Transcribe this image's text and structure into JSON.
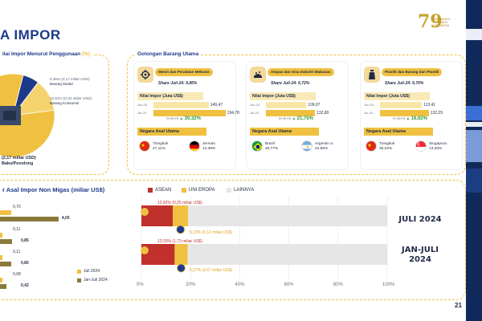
{
  "header": {
    "title": "A IMPOR",
    "logo_number": "79",
    "logo_text": "DIRGAHAYU REPUBLIK INDONESIA"
  },
  "left_panel": {
    "title_main": "ilai Impor Menurut Penggunaan",
    "title_suffix": "(%)",
    "notes": [
      {
        "text": "6,35% (0,17 miliar USD)",
        "sub": "Barang Modal"
      },
      {
        "text": "12,61% (0,34 miliar USD)",
        "sub": "Barang Konsumsi"
      }
    ],
    "big_text": "(2,17 miliar USD)",
    "big_sub": "Baku/Penolong"
  },
  "mid_panel": {
    "title": "Golongan Barang Utama",
    "cards": [
      {
        "tag": "Mesin dan Peralatan Mekanis",
        "share": "Share Juli-24: 9,86%",
        "nilai_label": "Nilai Impor (Juta US$)",
        "rows": [
          {
            "year": "Jun-24",
            "value": 149.47,
            "label": "149,47"
          },
          {
            "year": "Jul-24",
            "value": 194.78,
            "label": "194,78"
          }
        ],
        "mtm_label": "m-to-m",
        "mtm_pct": "30,32%",
        "asal_label": "Negara Asal Utama",
        "countries": [
          {
            "name": "Tiongkok",
            "pct": "47,11%",
            "flag": "cn"
          },
          {
            "name": "Jerman",
            "pct": "13,38%",
            "flag": "de"
          }
        ]
      },
      {
        "tag": "Ampas dan Sisa Industri Makanan",
        "share": "Share Juli-24: 6,72%",
        "nilai_label": "Nilai Impor (Juta US$)",
        "rows": [
          {
            "year": "Jun-24",
            "value": 109.07,
            "label": "109,07"
          },
          {
            "year": "Jul-24",
            "value": 132.8,
            "label": "132,80"
          }
        ],
        "mtm_label": "m-to-m",
        "mtm_pct": "21,75%",
        "asal_label": "Negara Asal Utama",
        "countries": [
          {
            "name": "Brazil",
            "pct": "49,77%",
            "flag": "br"
          },
          {
            "name": "Argentin a",
            "pct": "22,95%",
            "flag": "ar"
          }
        ]
      },
      {
        "tag": "Plastik dan Barang dari Plastik",
        "share": "Share Juli-24: 6,70%",
        "nilai_label": "Nilai Impor (Juta US$)",
        "rows": [
          {
            "year": "Jun-24",
            "value": 113.41,
            "label": "113,41"
          },
          {
            "year": "Jul-24",
            "value": 132.25,
            "label": "132,25"
          }
        ],
        "mtm_label": "m-to-m",
        "mtm_pct": "16,62%",
        "asal_label": "Negara Asal Utama",
        "countries": [
          {
            "name": "Tiongkok",
            "pct": "35,02%",
            "flag": "cn"
          },
          {
            "name": "Singapura",
            "pct": "13,35%",
            "flag": "sg"
          }
        ]
      }
    ]
  },
  "bottom_left": {
    "title": "r Asal Impor Non Migas (miliar US$)",
    "legend": [
      {
        "label": "Juli 2024",
        "color": "#f0c040"
      },
      {
        "label": "Jan-Juli 2024",
        "color": "#8a7a3a"
      }
    ],
    "pairs": [
      {
        "a": 0.7,
        "a_label": "0,70",
        "b": 4.05,
        "b_label": "4,05"
      },
      {
        "a": 0.11,
        "a_label": "0,11",
        "b": 0.85,
        "b_label": "0,85"
      },
      {
        "a": 0.11,
        "a_label": "0,11",
        "b": 0.8,
        "b_label": "0,80"
      },
      {
        "a": 0.08,
        "a_label": "0,08",
        "b": 0.42,
        "b_label": "0,42"
      }
    ]
  },
  "chart_data": [
    {
      "type": "pie",
      "slices": [
        {
          "name": "Barang Modal",
          "value": 6.35,
          "color": "#1d3a8a"
        },
        {
          "name": "Barang Konsumsi",
          "value": 12.61,
          "color": "#f0c040"
        },
        {
          "name": "Baku/Penolong",
          "value": 81.04,
          "color": "#f0c040"
        }
      ]
    },
    {
      "type": "bar",
      "orientation": "horizontal",
      "stacked": true,
      "categories": [
        "JULI 2024",
        "JAN-JULI 2024"
      ],
      "series": [
        {
          "name": "ASEAN",
          "color": "#c0312b",
          "values": [
            12.82,
            13.53
          ],
          "labels": [
            "12,82% (0,25 miliar US$)",
            "13,53% (1,73 miliar US$)"
          ]
        },
        {
          "name": "UNI EROPA",
          "color": "#f0c040",
          "values": [
            6.19,
            5.27
          ],
          "labels": [
            "6,19% (0,12 miliar US$)",
            "5,27% (0,67 miliar US$)"
          ]
        },
        {
          "name": "LAINNYA",
          "color": "#e6e6e6",
          "values": [
            80.99,
            81.2
          ]
        }
      ],
      "xlim": [
        0,
        100
      ],
      "x_ticks": [
        "0%",
        "20%",
        "40%",
        "60%",
        "80%",
        "100%"
      ]
    }
  ],
  "page_number": "21"
}
